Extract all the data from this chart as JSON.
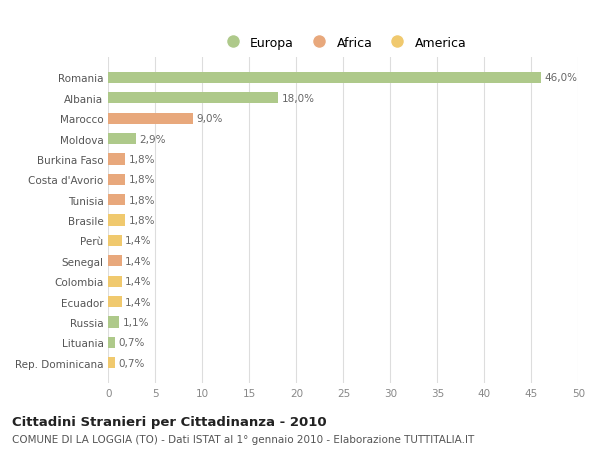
{
  "categories": [
    "Rep. Dominicana",
    "Lituania",
    "Russia",
    "Ecuador",
    "Colombia",
    "Senegal",
    "Perù",
    "Brasile",
    "Tunisia",
    "Costa d'Avorio",
    "Burkina Faso",
    "Moldova",
    "Marocco",
    "Albania",
    "Romania"
  ],
  "values": [
    0.7,
    0.7,
    1.1,
    1.4,
    1.4,
    1.4,
    1.4,
    1.8,
    1.8,
    1.8,
    1.8,
    2.9,
    9.0,
    18.0,
    46.0
  ],
  "continents": [
    "America",
    "Europa",
    "Europa",
    "America",
    "America",
    "Africa",
    "America",
    "America",
    "Africa",
    "Africa",
    "Africa",
    "Europa",
    "Africa",
    "Europa",
    "Europa"
  ],
  "colors": {
    "Europa": "#aec98a",
    "Africa": "#e8a87c",
    "America": "#f0c96e"
  },
  "legend_labels": [
    "Europa",
    "Africa",
    "America"
  ],
  "xlim": [
    0,
    50
  ],
  "xticks": [
    0,
    5,
    10,
    15,
    20,
    25,
    30,
    35,
    40,
    45,
    50
  ],
  "title_bold": "Cittadini Stranieri per Cittadinanza - 2010",
  "subtitle": "COMUNE DI LA LOGGIA (TO) - Dati ISTAT al 1° gennaio 2010 - Elaborazione TUTTITALIA.IT",
  "bg_color": "#ffffff",
  "grid_color": "#dddddd",
  "bar_height": 0.55,
  "label_fontsize": 7.5,
  "tick_fontsize": 7.5,
  "title_fontsize": 9.5,
  "subtitle_fontsize": 7.5,
  "legend_fontsize": 9
}
